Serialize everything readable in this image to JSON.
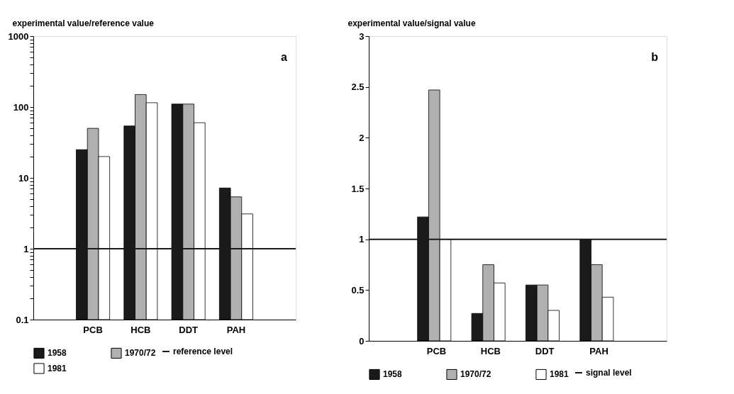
{
  "chart_data": [
    {
      "type": "bar",
      "ylabel": "experimental value/reference value",
      "categories": [
        "PCB",
        "HCB",
        "DDT",
        "PAH"
      ],
      "log": true,
      "ylim": [
        0.1,
        1000
      ],
      "yticks": [
        0.1,
        {
          "value": 0.2,
          "label": null
        },
        {
          "value": 0.3,
          "label": null
        },
        {
          "value": 0.4,
          "label": null
        },
        {
          "value": 0.5,
          "label": null
        },
        {
          "value": 0.6,
          "label": null
        },
        {
          "value": 0.7,
          "label": null
        },
        {
          "value": 0.8,
          "label": null
        },
        {
          "value": 0.9,
          "label": null
        },
        1,
        {
          "value": 2,
          "label": null
        },
        {
          "value": 3,
          "label": null
        },
        {
          "value": 4,
          "label": null
        },
        {
          "value": 5,
          "label": null
        },
        {
          "value": 6,
          "label": null
        },
        {
          "value": 7,
          "label": null
        },
        {
          "value": 8,
          "label": null
        },
        {
          "value": 9,
          "label": null
        },
        10,
        {
          "value": 20,
          "label": null
        },
        {
          "value": 30,
          "label": null
        },
        {
          "value": 40,
          "label": null
        },
        {
          "value": 50,
          "label": null
        },
        {
          "value": 60,
          "label": null
        },
        {
          "value": 70,
          "label": null
        },
        {
          "value": 80,
          "label": null
        },
        {
          "value": 90,
          "label": null
        },
        100,
        {
          "value": 200,
          "label": null
        },
        {
          "value": 300,
          "label": null
        },
        {
          "value": 400,
          "label": null
        },
        {
          "value": 500,
          "label": null
        },
        {
          "value": 600,
          "label": null
        },
        {
          "value": 700,
          "label": null
        },
        {
          "value": 800,
          "label": null
        },
        {
          "value": 900,
          "label": null
        },
        1000
      ],
      "series": [
        {
          "name": "1958",
          "color": "#1a1a1a",
          "values": [
            25,
            54,
            110,
            7.2
          ]
        },
        {
          "name": "1970/72",
          "color": "#b0b0b0",
          "values": [
            50,
            150,
            110,
            5.4
          ]
        },
        {
          "name": "1981",
          "color": "#ffffff",
          "values": [
            20,
            115,
            60,
            3.1
          ]
        }
      ],
      "ref_lines": [
        {
          "axis": "y",
          "value": 1,
          "label": "reference level",
          "color": "#1a1a1a",
          "line_style": "solid"
        }
      ],
      "annotations": [
        "a"
      ],
      "legend": "bottom",
      "grid": false
    },
    {
      "type": "bar",
      "ylabel": "experimental value/signal value",
      "categories": [
        "PCB",
        "HCB",
        "DDT",
        "PAH"
      ],
      "ylim": [
        0,
        3
      ],
      "yticks": [
        0,
        0.5,
        1,
        1.5,
        2,
        2.5,
        3
      ],
      "series": [
        {
          "name": "1958",
          "color": "#1a1a1a",
          "values": [
            1.22,
            0.27,
            0.55,
            1.0
          ]
        },
        {
          "name": "1970/72",
          "color": "#b0b0b0",
          "values": [
            2.47,
            0.75,
            0.55,
            0.75
          ]
        },
        {
          "name": "1981",
          "color": "#ffffff",
          "values": [
            1.0,
            0.57,
            0.3,
            0.43
          ]
        }
      ],
      "ref_lines": [
        {
          "axis": "y",
          "value": 1,
          "label": "signal level",
          "color": "#1a1a1a",
          "line_style": "solid"
        }
      ],
      "annotations": [
        "b"
      ],
      "legend": "bottom",
      "grid": false
    }
  ]
}
